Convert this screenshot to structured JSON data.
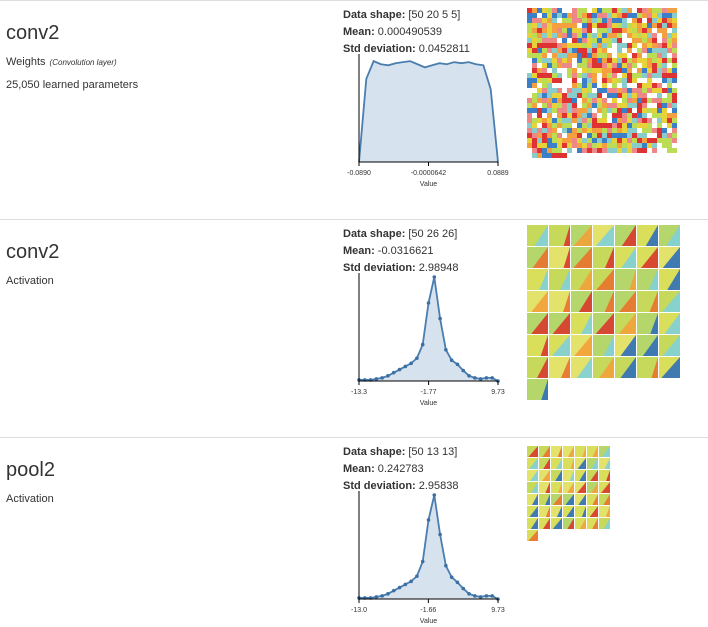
{
  "layers": [
    {
      "name": "conv2",
      "kind": "Weights",
      "note": "(Convolution layer)",
      "params": "25,050 learned parameters",
      "stats": [
        {
          "label": "Data shape:",
          "value": "[50 20 5 5]"
        },
        {
          "label": "Mean:",
          "value": "0.000490539"
        },
        {
          "label": "Std deviation:",
          "value": "0.0452811"
        }
      ],
      "histogram": {
        "xlim": [
          -0.089,
          0.0889
        ],
        "xticks": [
          {
            "value": -0.089,
            "label": "-0.0890"
          },
          {
            "value": -6.42e-05,
            "label": "-0.0000642"
          },
          0.0889
        ],
        "xlabel": "Value",
        "values": [
          0,
          80,
          97,
          94,
          93,
          95,
          96,
          97,
          94,
          91,
          93,
          95,
          94,
          96,
          95,
          96,
          94,
          93,
          70,
          0
        ]
      }
    },
    {
      "name": "conv2",
      "kind": "Activation",
      "stats": [
        {
          "label": "Data shape:",
          "value": "[50 26 26]"
        },
        {
          "label": "Mean:",
          "value": "-0.0316621"
        },
        {
          "label": "Std deviation:",
          "value": "2.98948"
        }
      ],
      "histogram": {
        "xlim": [
          -13.3,
          9.73
        ],
        "xticks": [
          -13.3,
          -1.77,
          9.73
        ],
        "xlabel": "Value",
        "values": [
          1,
          1,
          1,
          2,
          3,
          5,
          8,
          11,
          14,
          17,
          22,
          35,
          75,
          100,
          60,
          30,
          20,
          16,
          10,
          5,
          3,
          2,
          3,
          3,
          0
        ]
      }
    },
    {
      "name": "pool2",
      "kind": "Activation",
      "stats": [
        {
          "label": "Data shape:",
          "value": "[50 13 13]"
        },
        {
          "label": "Mean:",
          "value": "0.242783"
        },
        {
          "label": "Std deviation:",
          "value": "2.95838"
        }
      ],
      "histogram": {
        "xlim": [
          -13.0,
          9.73
        ],
        "xticks": [
          {
            "value": -13.0,
            "label": "-13.0"
          },
          -1.66,
          9.73
        ],
        "xlabel": "Value",
        "values": [
          1,
          1,
          1,
          2,
          3,
          5,
          8,
          11,
          14,
          17,
          22,
          36,
          76,
          100,
          62,
          32,
          21,
          16,
          10,
          5,
          3,
          2,
          3,
          3,
          0
        ]
      }
    }
  ]
}
